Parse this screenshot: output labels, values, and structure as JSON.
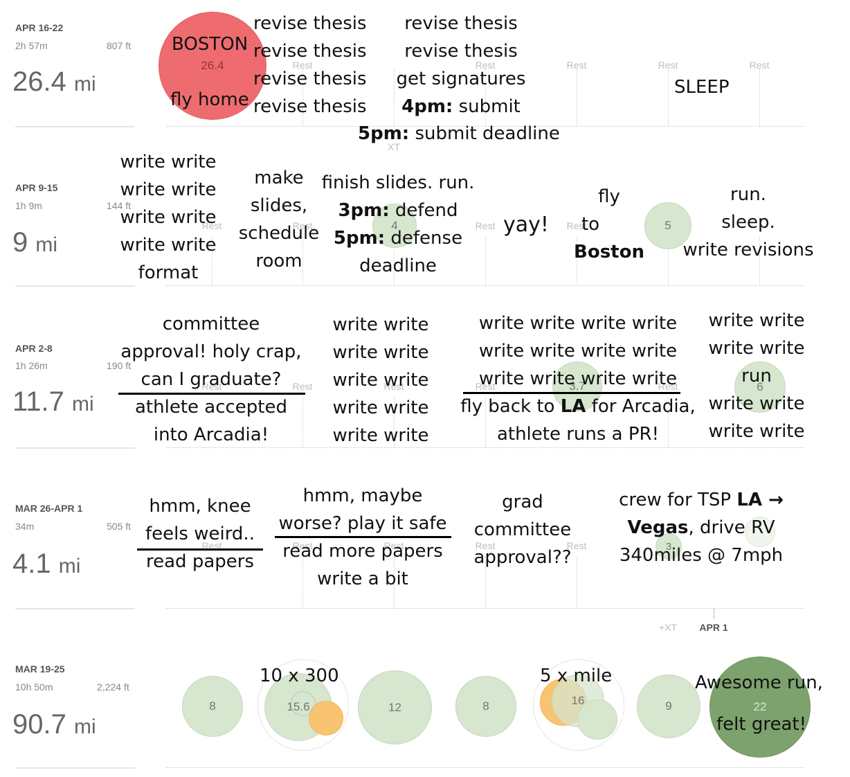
{
  "weeks": [
    {
      "range": "APR 16-22",
      "time": "2h 57m",
      "elev": "807 ft",
      "dist": "26.4",
      "unit": "mi"
    },
    {
      "range": "APR 9-15",
      "time": "1h 9m",
      "elev": "144 ft",
      "dist": "9",
      "unit": "mi"
    },
    {
      "range": "APR 2-8",
      "time": "1h 26m",
      "elev": "190 ft",
      "dist": "11.7",
      "unit": "mi"
    },
    {
      "range": "MAR 26-APR 1",
      "time": "34m",
      "elev": "505 ft",
      "dist": "4.1",
      "unit": "mi"
    },
    {
      "range": "MAR 19-25",
      "time": "10h 50m",
      "elev": "2,224 ft",
      "dist": "90.7",
      "unit": "mi"
    }
  ],
  "calendar": {
    "rest_label": "Rest",
    "xt_label": "XT",
    "plus_xt_label": "+XT",
    "apr1_label": "APR 1",
    "w1_bubble": "26.4",
    "w2_bubbles": [
      "4",
      "5"
    ],
    "w3_bubbles": [
      "3.7",
      "6"
    ],
    "w4_bubbles": [
      "3"
    ],
    "w5_bubbles": [
      "8",
      "15.6",
      "12",
      "8",
      "16",
      "9",
      "22"
    ]
  },
  "notes": {
    "w1": {
      "boston": "BOSTON",
      "fly_home": "fly home",
      "col2": [
        "revise thesis",
        "revise thesis",
        "revise thesis",
        "revise thesis"
      ],
      "col3": [
        "revise thesis",
        "revise thesis",
        "get signatures"
      ],
      "submit_time": "4pm:",
      "submit_text": " submit",
      "deadline_time": "5pm:",
      "deadline_text": " submit deadline",
      "sleep": "SLEEP"
    },
    "w2": {
      "col1": [
        "write write",
        "write write",
        "write write",
        "write write",
        "format"
      ],
      "col2": [
        "make",
        "slides,",
        "schedule",
        "room"
      ],
      "col3_l1": "finish slides. run.",
      "defend_time": "3pm:",
      "defend_text": " defend",
      "defense_time": "5pm:",
      "defense_text": " defense",
      "col3_l4": "deadline",
      "yay": "yay!",
      "fly": "fly",
      "to": "to",
      "boston": "Boston",
      "col6": [
        "run.",
        "sleep.",
        "write revisions"
      ]
    },
    "w3": {
      "col1": [
        "committee",
        "approval! holy crap,",
        "can I graduate?",
        "athlete accepted",
        "into Arcadia!"
      ],
      "col2": [
        "write write",
        "write write",
        "write write",
        "write write",
        "write write"
      ],
      "col3": [
        "write write write write",
        "write write write write",
        "write write write write"
      ],
      "fly_pre": "fly back to ",
      "fly_la": "LA",
      "fly_post": " for Arcadia,",
      "pr": "athlete runs a PR!",
      "col4": [
        "write write",
        "write write",
        "run",
        "write write",
        "write write"
      ]
    },
    "w4": {
      "col1": [
        "hmm, knee",
        "feels weird..",
        "read papers"
      ],
      "col2": [
        "hmm, maybe",
        "worse? play it safe",
        "read more papers",
        "write a bit"
      ],
      "col3": [
        "grad",
        "committee",
        "approval??"
      ],
      "crew_pre": "crew for TSP ",
      "crew_la": "LA",
      "crew_arrow": " →",
      "vegas": "Vegas",
      "vegas_post": ", drive RV",
      "miles": "340miles @ 7mph"
    },
    "w5": {
      "tenx": "10 x 300",
      "fivex": "5 x mile",
      "awesome": "Awesome run,",
      "felt": "felt great!"
    }
  }
}
